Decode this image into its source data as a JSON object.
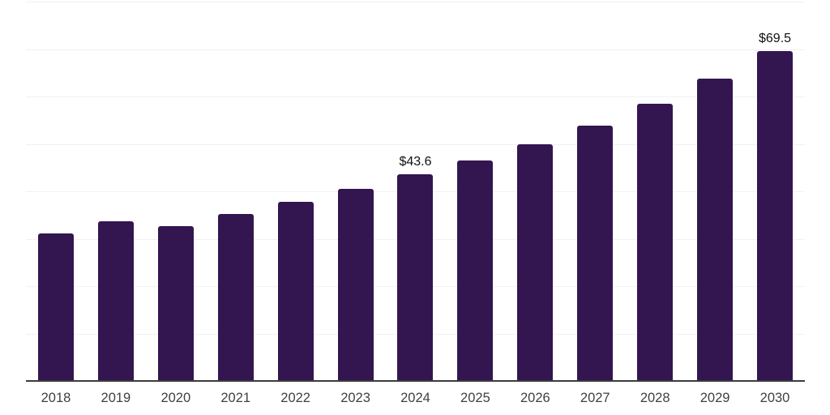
{
  "chart_data": {
    "type": "bar",
    "categories": [
      "2018",
      "2019",
      "2020",
      "2021",
      "2022",
      "2023",
      "2024",
      "2025",
      "2026",
      "2027",
      "2028",
      "2029",
      "2030"
    ],
    "values": [
      31.1,
      33.6,
      32.7,
      35.2,
      37.7,
      40.6,
      43.6,
      46.5,
      49.9,
      53.9,
      58.4,
      63.7,
      69.5
    ],
    "data_labels": {
      "2024": "$43.6",
      "2030": "$69.5"
    },
    "ylim": [
      0,
      80
    ],
    "gridline_step": 10,
    "grid": true,
    "legend_shown": false,
    "y_tick_labels_shown": false,
    "colors": {
      "bar": "#331550",
      "axis_line": "#3c3c3c",
      "gridline": "#f1f1f1",
      "data_label_text": "#111111",
      "x_tick_text": "#404040",
      "background": "#ffffff"
    }
  }
}
